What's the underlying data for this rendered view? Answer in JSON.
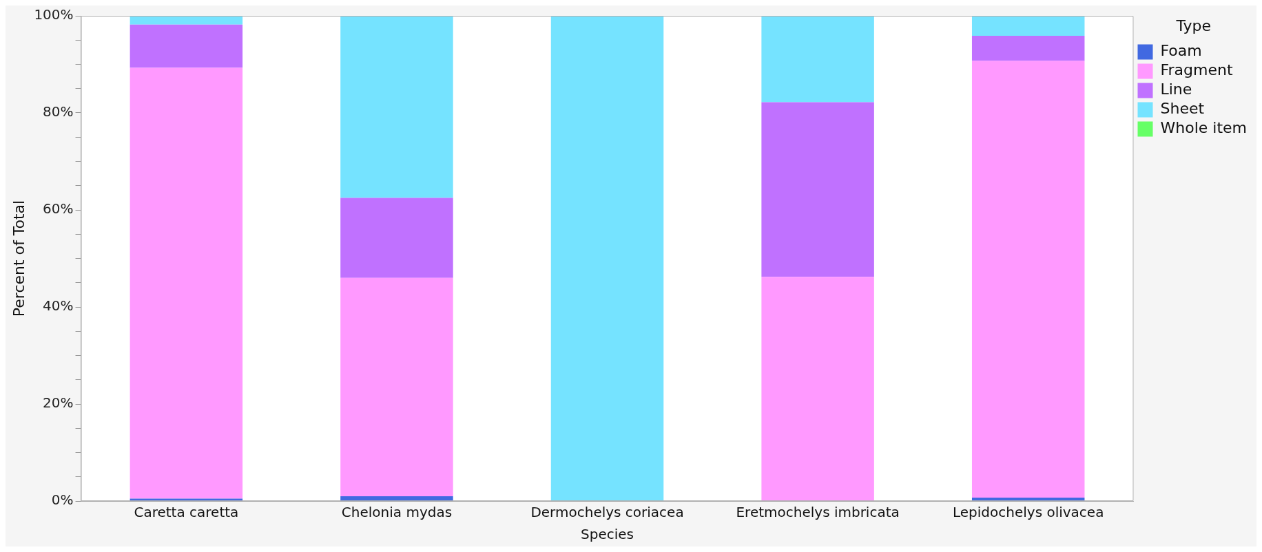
{
  "chart_data": {
    "type": "bar",
    "stacked": true,
    "xlabel": "Species",
    "ylabel": "Percent of Total",
    "legend_title": "Type",
    "legend": "right",
    "categories": [
      "Caretta caretta",
      "Chelonia mydas",
      "Dermochelys coriacea",
      "Eretmochelys imbricata",
      "Lepidochelys olivacea"
    ],
    "series": [
      {
        "name": "Foam",
        "color": "#4169e1",
        "values": [
          0.5,
          1,
          0,
          0,
          0.7
        ]
      },
      {
        "name": "Fragment",
        "color": "#ff99ff",
        "values": [
          88.8,
          45,
          0,
          46.2,
          90
        ]
      },
      {
        "name": "Line",
        "color": "#c071ff",
        "values": [
          8.9,
          16.5,
          0,
          36,
          5.2
        ]
      },
      {
        "name": "Sheet",
        "color": "#75e3ff",
        "values": [
          1.8,
          37.5,
          100,
          17.8,
          4.1
        ]
      },
      {
        "name": "Whole item",
        "color": "#66ff66",
        "values": [
          0,
          0,
          0,
          0,
          0
        ]
      }
    ],
    "ylim": [
      0,
      100
    ],
    "yticks": [
      {
        "value": 0,
        "label": "0%"
      },
      {
        "value": 5,
        "label": null
      },
      {
        "value": 10,
        "label": null
      },
      {
        "value": 15,
        "label": null
      },
      {
        "value": 20,
        "label": "20%"
      },
      {
        "value": 25,
        "label": null
      },
      {
        "value": 30,
        "label": null
      },
      {
        "value": 35,
        "label": null
      },
      {
        "value": 40,
        "label": "40%"
      },
      {
        "value": 45,
        "label": null
      },
      {
        "value": 50,
        "label": null
      },
      {
        "value": 55,
        "label": null
      },
      {
        "value": 60,
        "label": "60%"
      },
      {
        "value": 65,
        "label": null
      },
      {
        "value": 70,
        "label": null
      },
      {
        "value": 75,
        "label": null
      },
      {
        "value": 80,
        "label": "80%"
      },
      {
        "value": 85,
        "label": null
      },
      {
        "value": 90,
        "label": null
      },
      {
        "value": 95,
        "label": null
      },
      {
        "value": 100,
        "label": "100%"
      }
    ],
    "grid": false
  }
}
